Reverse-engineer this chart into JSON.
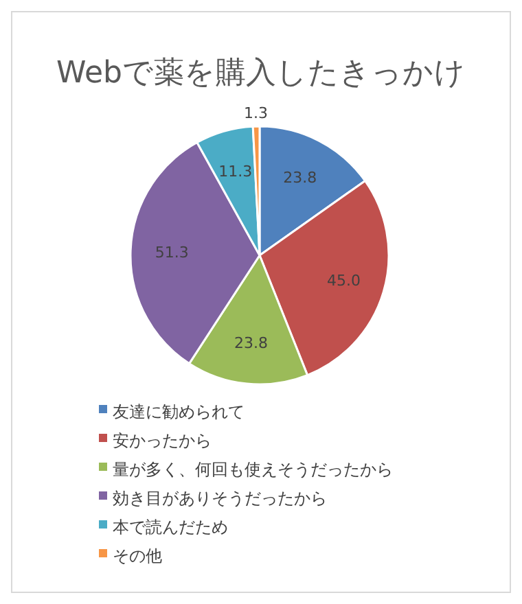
{
  "chart_data": {
    "type": "pie",
    "title": "Webで薬を購入したきっかけ",
    "categories": [
      "友達に勧められて",
      "安かったから",
      "量が多く、何回も使えそうだったから",
      "効き目がありそうだったから",
      "本で読んだため",
      "その他"
    ],
    "values": [
      23.8,
      45.0,
      23.8,
      51.3,
      11.3,
      1.3
    ],
    "colors": [
      "#4f81bd",
      "#c0504d",
      "#9bbb59",
      "#8064a2",
      "#4bacc6",
      "#f79646"
    ],
    "value_labels": [
      "23.8",
      "45.0",
      "23.8",
      "51.3",
      "11.3",
      "1.3"
    ],
    "legend": "bottom"
  }
}
